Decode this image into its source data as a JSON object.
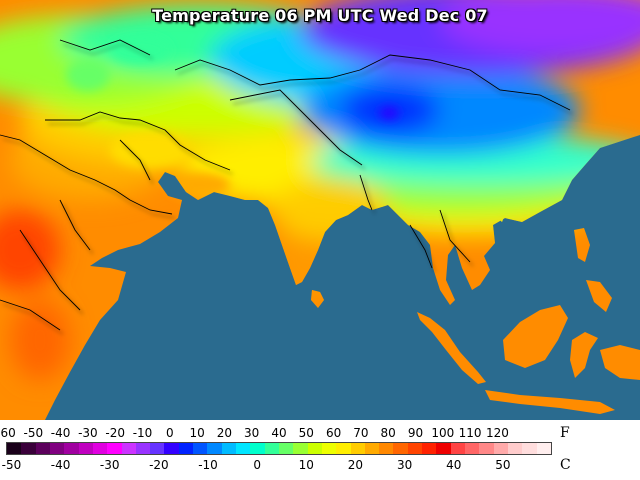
{
  "title": "Temperature 06 PM UTC Wed Dec 07",
  "legend": {
    "fahrenheit_ticks": [
      "-60",
      "-50",
      "-40",
      "-30",
      "-20",
      "-10",
      "0",
      "10",
      "20",
      "30",
      "40",
      "50",
      "60",
      "70",
      "80",
      "90",
      "100",
      "110",
      "120"
    ],
    "celsius_ticks": [
      "-50",
      "-40",
      "-30",
      "-20",
      "-10",
      "0",
      "10",
      "20",
      "30",
      "40",
      "50"
    ],
    "fahrenheit_values": [
      -60,
      -50,
      -40,
      -30,
      -20,
      -10,
      0,
      10,
      20,
      30,
      40,
      50,
      60,
      70,
      80,
      90,
      100,
      110,
      120
    ],
    "celsius_values": [
      -50,
      -40,
      -30,
      -20,
      -10,
      0,
      10,
      20,
      30,
      40,
      50
    ],
    "unit_f": "F",
    "unit_c": "C",
    "scale_colors": [
      "#1a001a",
      "#3a003a",
      "#5c005c",
      "#800080",
      "#a000a0",
      "#c000c0",
      "#e000e0",
      "#ff00ff",
      "#cc33ff",
      "#9933ff",
      "#6633ff",
      "#3300ff",
      "#0022ff",
      "#0055ff",
      "#0088ff",
      "#00bbff",
      "#00e5ff",
      "#00ffcc",
      "#33ff99",
      "#66ff66",
      "#99ff33",
      "#ccff00",
      "#eeff00",
      "#ffee00",
      "#ffcc00",
      "#ffaa00",
      "#ff8800",
      "#ff6600",
      "#ff4400",
      "#ff2200",
      "#ee0000",
      "#ff4444",
      "#ff6666",
      "#ff8888",
      "#ffaaaa",
      "#ffcccc",
      "#ffdddd",
      "#ffeeee"
    ]
  },
  "colors": {
    "ocean": "#2a6b8f",
    "boundary": "#000000"
  }
}
